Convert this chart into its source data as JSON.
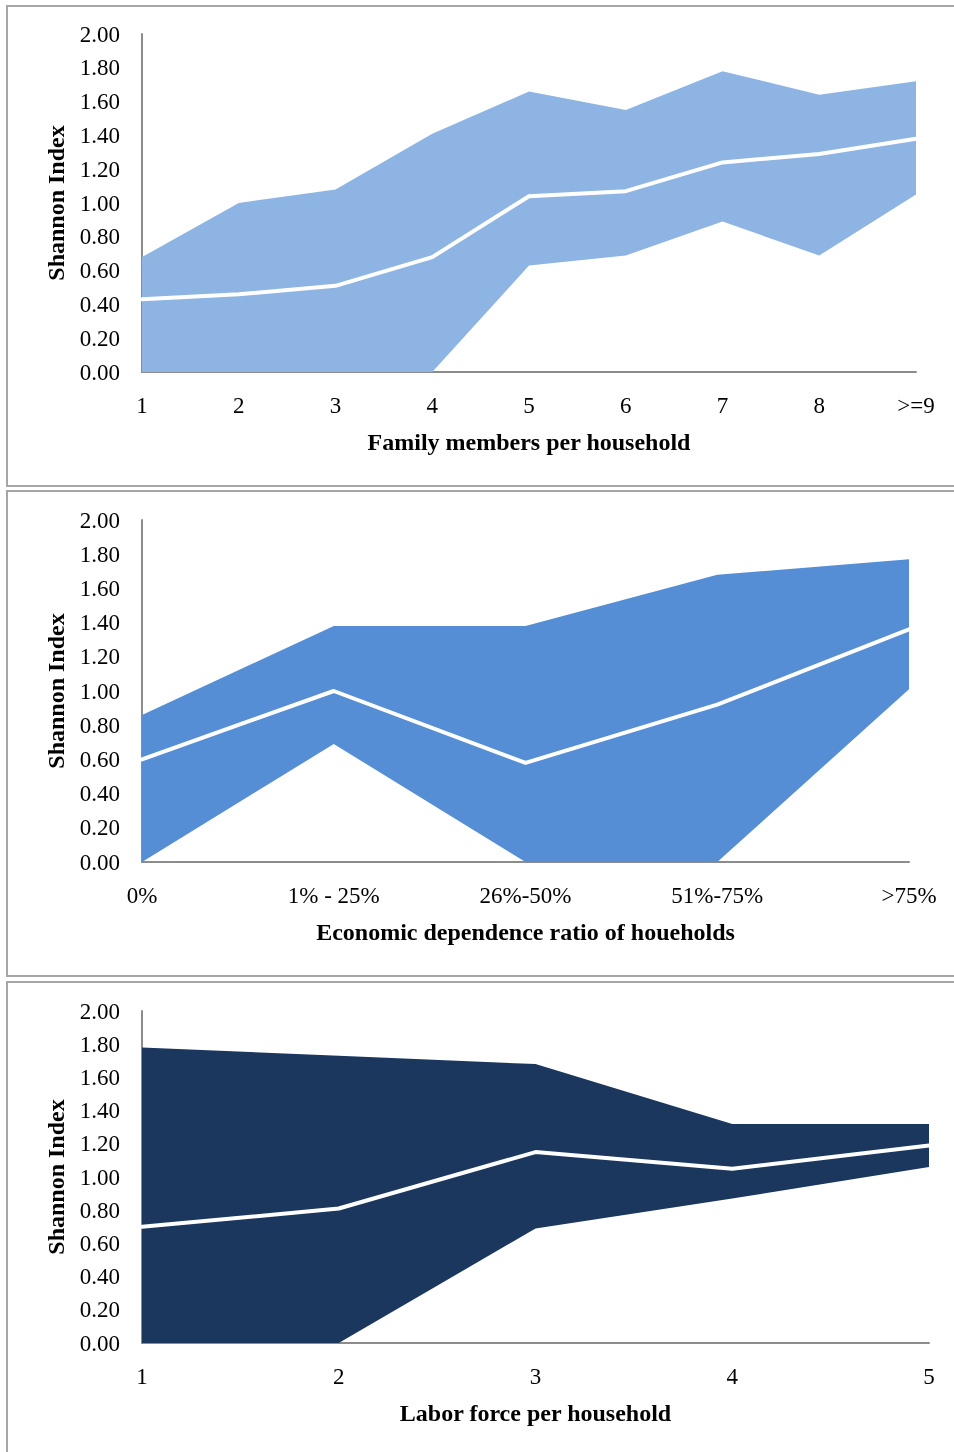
{
  "chart_data": [
    {
      "type": "line",
      "color": "#8eb4e3",
      "categories": [
        "1",
        "2",
        "3",
        "4",
        "5",
        "6",
        "7",
        "8",
        ">=9"
      ],
      "xlabel": "Family members per household",
      "ylabel": "Shannon Index",
      "ylim": [
        0,
        2
      ],
      "yticks": [
        {
          "value": 0,
          "label": "0.00"
        },
        {
          "value": 0.2,
          "label": "0.20"
        },
        {
          "value": 0.4,
          "label": "0.40"
        },
        {
          "value": 0.6,
          "label": "0.60"
        },
        {
          "value": 0.8,
          "label": "0.80"
        },
        {
          "value": 1,
          "label": "1.00"
        },
        {
          "value": 1.2,
          "label": "1.20"
        },
        {
          "value": 1.4,
          "label": "1.40"
        },
        {
          "value": 1.6,
          "label": "1.60"
        },
        {
          "value": 1.8,
          "label": "1.80"
        },
        {
          "value": 2,
          "label": "2.00"
        }
      ],
      "series": [
        {
          "color": "#ffffff",
          "values": [
            0.43,
            0.46,
            0.51,
            0.68,
            1.04,
            1.07,
            1.24,
            1.29,
            1.38
          ],
          "lower": [
            0,
            0,
            0,
            0,
            0.63,
            0.69,
            0.89,
            0.69,
            1.05
          ],
          "upper": [
            0.68,
            1.0,
            1.08,
            1.41,
            1.66,
            1.55,
            1.78,
            1.64,
            1.72
          ]
        }
      ]
    },
    {
      "type": "line",
      "color": "#558ed5",
      "categories": [
        "0%",
        "1% - 25%",
        "26%-50%",
        "51%-75%",
        ">75%"
      ],
      "xlabel": "Economic dependence ratio of houeholds",
      "ylabel": "Shannon Index",
      "ylim": [
        0,
        2
      ],
      "yticks": [
        {
          "value": 0,
          "label": "0.00"
        },
        {
          "value": 0.2,
          "label": "0.20"
        },
        {
          "value": 0.4,
          "label": "0.40"
        },
        {
          "value": 0.6,
          "label": "0.60"
        },
        {
          "value": 0.8,
          "label": "0.80"
        },
        {
          "value": 1,
          "label": "1.00"
        },
        {
          "value": 1.2,
          "label": "1.20"
        },
        {
          "value": 1.4,
          "label": "1.40"
        },
        {
          "value": 1.6,
          "label": "1.60"
        },
        {
          "value": 1.8,
          "label": "1.80"
        },
        {
          "value": 2,
          "label": "2.00"
        }
      ],
      "series": [
        {
          "color": "#ffffff",
          "values": [
            0.6,
            1.0,
            0.58,
            0.92,
            1.36
          ],
          "lower": [
            0,
            0.69,
            0,
            0,
            1.01
          ],
          "upper": [
            0.86,
            1.38,
            1.38,
            1.68,
            1.77
          ]
        }
      ]
    },
    {
      "type": "line",
      "color": "#1b375d",
      "categories": [
        "1",
        "2",
        "3",
        "4",
        "5"
      ],
      "xlabel": "Labor force per household",
      "ylabel": "Shannon Index",
      "ylim": [
        0,
        2
      ],
      "yticks": [
        {
          "value": 0,
          "label": "0.00"
        },
        {
          "value": 0.2,
          "label": "0.20"
        },
        {
          "value": 0.4,
          "label": "0.40"
        },
        {
          "value": 0.6,
          "label": "0.60"
        },
        {
          "value": 0.8,
          "label": "0.80"
        },
        {
          "value": 1,
          "label": "1.00"
        },
        {
          "value": 1.2,
          "label": "1.20"
        },
        {
          "value": 1.4,
          "label": "1.40"
        },
        {
          "value": 1.6,
          "label": "1.60"
        },
        {
          "value": 1.8,
          "label": "1.80"
        },
        {
          "value": 2,
          "label": "2.00"
        }
      ],
      "series": [
        {
          "color": "#ffffff",
          "values": [
            0.7,
            0.81,
            1.15,
            1.05,
            1.19
          ],
          "lower": [
            0,
            0,
            0.69,
            0.87,
            1.06
          ],
          "upper": [
            1.78,
            1.73,
            1.68,
            1.32,
            1.32
          ]
        }
      ]
    }
  ]
}
